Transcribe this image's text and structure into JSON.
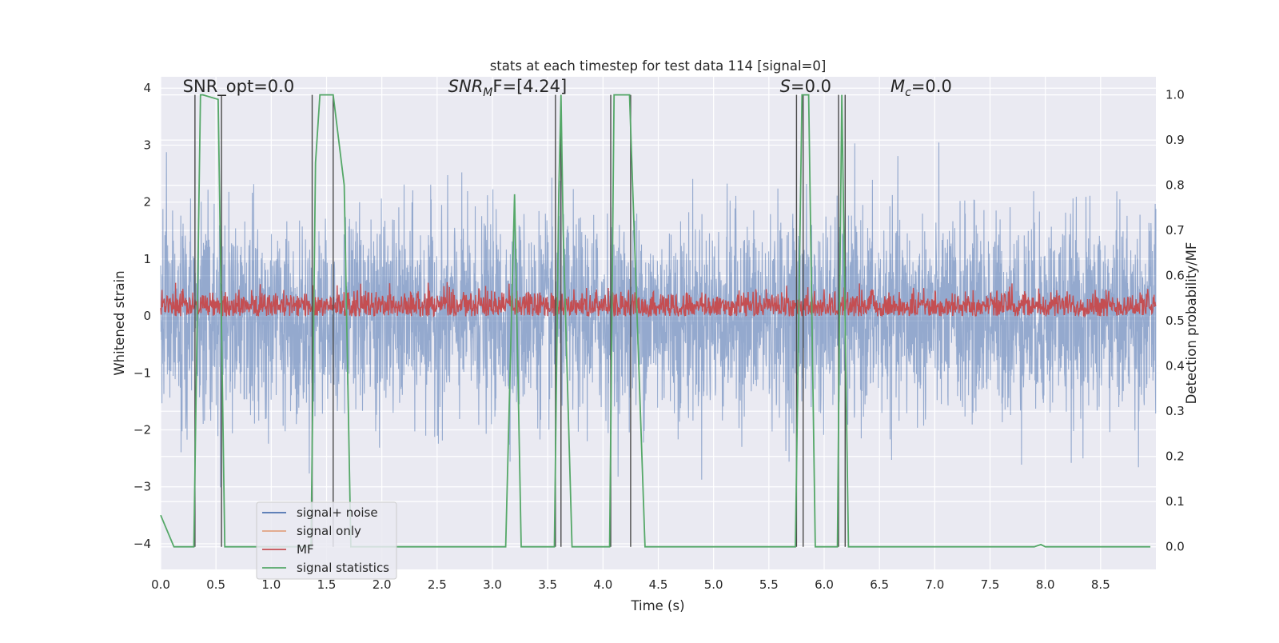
{
  "chart_data": {
    "type": "line",
    "title": "stats at each timestep for test data 114 [signal=0]",
    "xlabel": "Time (s)",
    "ylabel": "Whitened strain",
    "ylabel_right": "Detection probability/MF",
    "xlim": [
      0.0,
      9.0
    ],
    "ylim": [
      -4.45,
      4.2
    ],
    "ylim_right": [
      -0.05,
      1.04
    ],
    "x_ticks": [
      "0.0",
      "0.5",
      "1.0",
      "1.5",
      "2.0",
      "2.5",
      "3.0",
      "3.5",
      "4.0",
      "4.5",
      "5.0",
      "5.5",
      "6.0",
      "6.5",
      "7.0",
      "7.5",
      "8.0",
      "8.5"
    ],
    "y_ticks": [
      "−4",
      "−3",
      "−2",
      "−1",
      "0",
      "1",
      "2",
      "3",
      "4"
    ],
    "y_ticks_right": [
      "0.0",
      "0.1",
      "0.2",
      "0.3",
      "0.4",
      "0.5",
      "0.6",
      "0.7",
      "0.8",
      "0.9",
      "1.0"
    ],
    "grid": true,
    "legend_position": "lower-left",
    "annotations": [
      {
        "base": "SNR_opt=0.0",
        "sub": "",
        "tail": "",
        "math": false
      },
      {
        "base": "SNR",
        "sub": "M",
        "tail": "F=[4.24]",
        "math": true
      },
      {
        "base": "S",
        "sub": "",
        "tail": "=0.0",
        "math": true
      },
      {
        "base": "M",
        "sub": "c",
        "tail": "=0.0",
        "math": true
      }
    ],
    "series": [
      {
        "name": "signal+ noise",
        "color": "#4c72b0",
        "axis": "left",
        "noise_sigma": 0.85,
        "noise_peak": 3.5
      },
      {
        "name": "signal only",
        "color": "#dd8452",
        "axis": "left",
        "values": []
      },
      {
        "name": "MF",
        "color": "#c44e52",
        "axis": "right",
        "baseline": 0.51,
        "upper": 0.56,
        "peak": 0.59
      },
      {
        "name": "signal statistics",
        "color": "#55a868",
        "axis": "right",
        "x": [
          0.0,
          0.12,
          0.3,
          0.36,
          0.38,
          0.52,
          0.58,
          0.62,
          1.36,
          1.4,
          1.44,
          1.56,
          1.66,
          1.72,
          3.12,
          3.2,
          3.26,
          3.56,
          3.6,
          3.62,
          3.64,
          3.72,
          4.06,
          4.1,
          4.24,
          4.38,
          5.74,
          5.8,
          5.86,
          5.92,
          6.12,
          6.14,
          6.16,
          6.22,
          6.26,
          6.3,
          7.9,
          7.96,
          8.0,
          8.95
        ],
        "y": [
          0.07,
          0.0,
          0.0,
          1.0,
          1.0,
          0.99,
          0.0,
          0.0,
          0.0,
          0.85,
          1.0,
          1.0,
          0.8,
          0.0,
          0.0,
          0.78,
          0.0,
          0.0,
          0.78,
          1.0,
          0.7,
          0.0,
          0.0,
          1.0,
          1.0,
          0.0,
          0.0,
          1.0,
          1.0,
          0.0,
          0.0,
          0.55,
          1.0,
          0.0,
          0.0,
          0.0,
          0.0,
          0.005,
          0.0,
          0.0
        ]
      }
    ],
    "vertical_lines": [
      0.31,
      0.55,
      1.37,
      1.56,
      3.57,
      3.62,
      4.07,
      4.25,
      5.75,
      5.81,
      6.13,
      6.19
    ]
  }
}
